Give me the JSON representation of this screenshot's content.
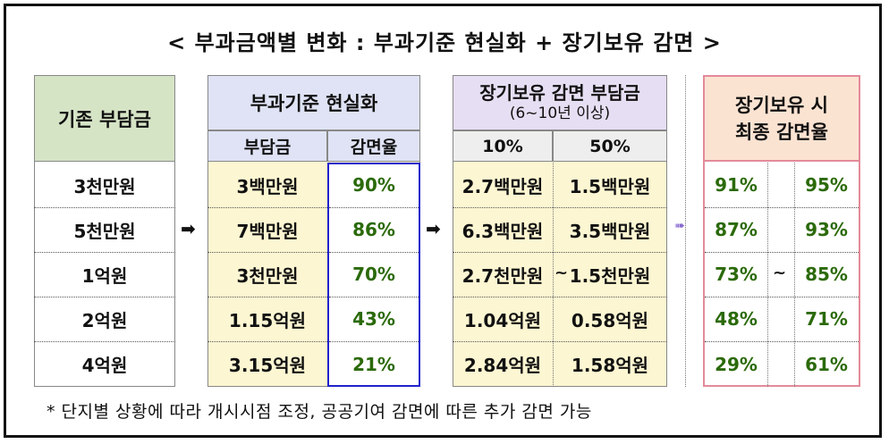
{
  "title": "< 부과금액별 변화 : 부과기준 현실화 + 장기보유 감면 >",
  "columns": {
    "base": {
      "header": "기존 부담금"
    },
    "realization": {
      "header": "부과기준 현실화",
      "sub1": "부담금",
      "sub2": "감면율"
    },
    "longterm": {
      "header_line1": "장기보유 감면 부담금",
      "header_line2": "(6~10년 이상)",
      "sub1": "10%",
      "sub2": "50%"
    },
    "final": {
      "header_line1": "장기보유 시",
      "header_line2": "최종 감면율"
    }
  },
  "rows": [
    {
      "base": "3천만원",
      "charge": "3백만원",
      "rate": "90%",
      "lt10": "2.7백만원",
      "lt50": "1.5백만원",
      "f1": "91%",
      "f2": "95%"
    },
    {
      "base": "5천만원",
      "charge": "7백만원",
      "rate": "86%",
      "lt10": "6.3백만원",
      "lt50": "3.5백만원",
      "f1": "87%",
      "f2": "93%"
    },
    {
      "base": "1억원",
      "charge": "3천만원",
      "rate": "70%",
      "lt10": "2.7천만원",
      "lt50": "1.5천만원",
      "f1": "73%",
      "f2": "85%"
    },
    {
      "base": "2억원",
      "charge": "1.15억원",
      "rate": "43%",
      "lt10": "1.04억원",
      "lt50": "0.58억원",
      "f1": "48%",
      "f2": "71%"
    },
    {
      "base": "4억원",
      "charge": "3.15억원",
      "rate": "21%",
      "lt10": "2.84억원",
      "lt50": "1.58억원",
      "f1": "29%",
      "f2": "61%"
    }
  ],
  "symbols": {
    "arrow": "➡",
    "arrow_small": "➠",
    "tilde": "~"
  },
  "footnote": "*  단지별 상황에 따라 개시시점 조정, 공공기여 감면에 따른 추가 감면 가능",
  "colors": {
    "base_header": "#d6e4c6",
    "realization_header": "#dfe3f5",
    "realization_body": "#fdf6d2",
    "longterm_header": "#e6def2",
    "longterm_body": "#fdf6d2",
    "final_header": "#fbe3d2",
    "final_border": "#e38a9a",
    "rate_border": "#2222cc",
    "subheader": "#eeeeee",
    "value_green": "#2b6a0a"
  }
}
